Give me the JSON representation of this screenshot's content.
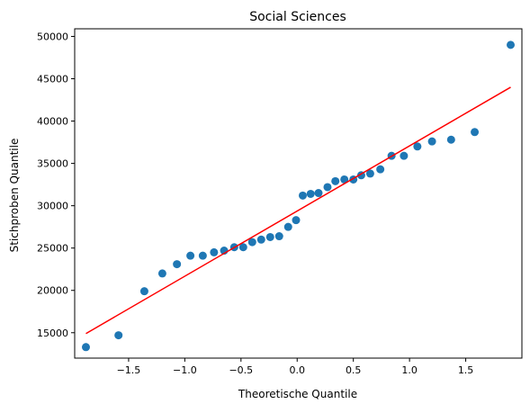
{
  "chart_data": {
    "type": "scatter",
    "title": "Social Sciences",
    "xlabel": "Theoretische Quantile",
    "ylabel": "Stichproben Quantile",
    "xlim": [
      -1.98,
      2.0
    ],
    "ylim": [
      12000,
      50900
    ],
    "grid": false,
    "legend": "none",
    "xticks": [
      -1.5,
      -1.0,
      -0.5,
      0.0,
      0.5,
      1.0,
      1.5
    ],
    "xtick_labels": [
      "−1.5",
      "−1.0",
      "−0.5",
      "0.0",
      "0.5",
      "1.0",
      "1.5"
    ],
    "yticks": [
      15000,
      20000,
      25000,
      30000,
      35000,
      40000,
      45000,
      50000
    ],
    "ytick_labels": [
      "15000",
      "20000",
      "25000",
      "30000",
      "35000",
      "40000",
      "45000",
      "50000"
    ],
    "marker_color": "#1f77b4",
    "line_color": "#ff0000",
    "points": [
      {
        "x": -1.88,
        "y": 13300
      },
      {
        "x": -1.59,
        "y": 14700
      },
      {
        "x": -1.36,
        "y": 19900
      },
      {
        "x": -1.2,
        "y": 22000
      },
      {
        "x": -1.07,
        "y": 23100
      },
      {
        "x": -0.95,
        "y": 24100
      },
      {
        "x": -0.84,
        "y": 24100
      },
      {
        "x": -0.74,
        "y": 24500
      },
      {
        "x": -0.65,
        "y": 24700
      },
      {
        "x": -0.56,
        "y": 25100
      },
      {
        "x": -0.48,
        "y": 25100
      },
      {
        "x": -0.4,
        "y": 25700
      },
      {
        "x": -0.32,
        "y": 26000
      },
      {
        "x": -0.24,
        "y": 26300
      },
      {
        "x": -0.16,
        "y": 26400
      },
      {
        "x": -0.08,
        "y": 27500
      },
      {
        "x": -0.01,
        "y": 28300
      },
      {
        "x": 0.05,
        "y": 31200
      },
      {
        "x": 0.12,
        "y": 31400
      },
      {
        "x": 0.19,
        "y": 31500
      },
      {
        "x": 0.27,
        "y": 32200
      },
      {
        "x": 0.34,
        "y": 32900
      },
      {
        "x": 0.42,
        "y": 33100
      },
      {
        "x": 0.5,
        "y": 33100
      },
      {
        "x": 0.57,
        "y": 33600
      },
      {
        "x": 0.65,
        "y": 33800
      },
      {
        "x": 0.74,
        "y": 34300
      },
      {
        "x": 0.84,
        "y": 35900
      },
      {
        "x": 0.95,
        "y": 35900
      },
      {
        "x": 1.07,
        "y": 37000
      },
      {
        "x": 1.2,
        "y": 37600
      },
      {
        "x": 1.37,
        "y": 37800
      },
      {
        "x": 1.58,
        "y": 38700
      },
      {
        "x": 1.9,
        "y": 49000
      }
    ],
    "reference_line": [
      {
        "x": -1.88,
        "y": 14900
      },
      {
        "x": 1.9,
        "y": 44000
      }
    ]
  }
}
